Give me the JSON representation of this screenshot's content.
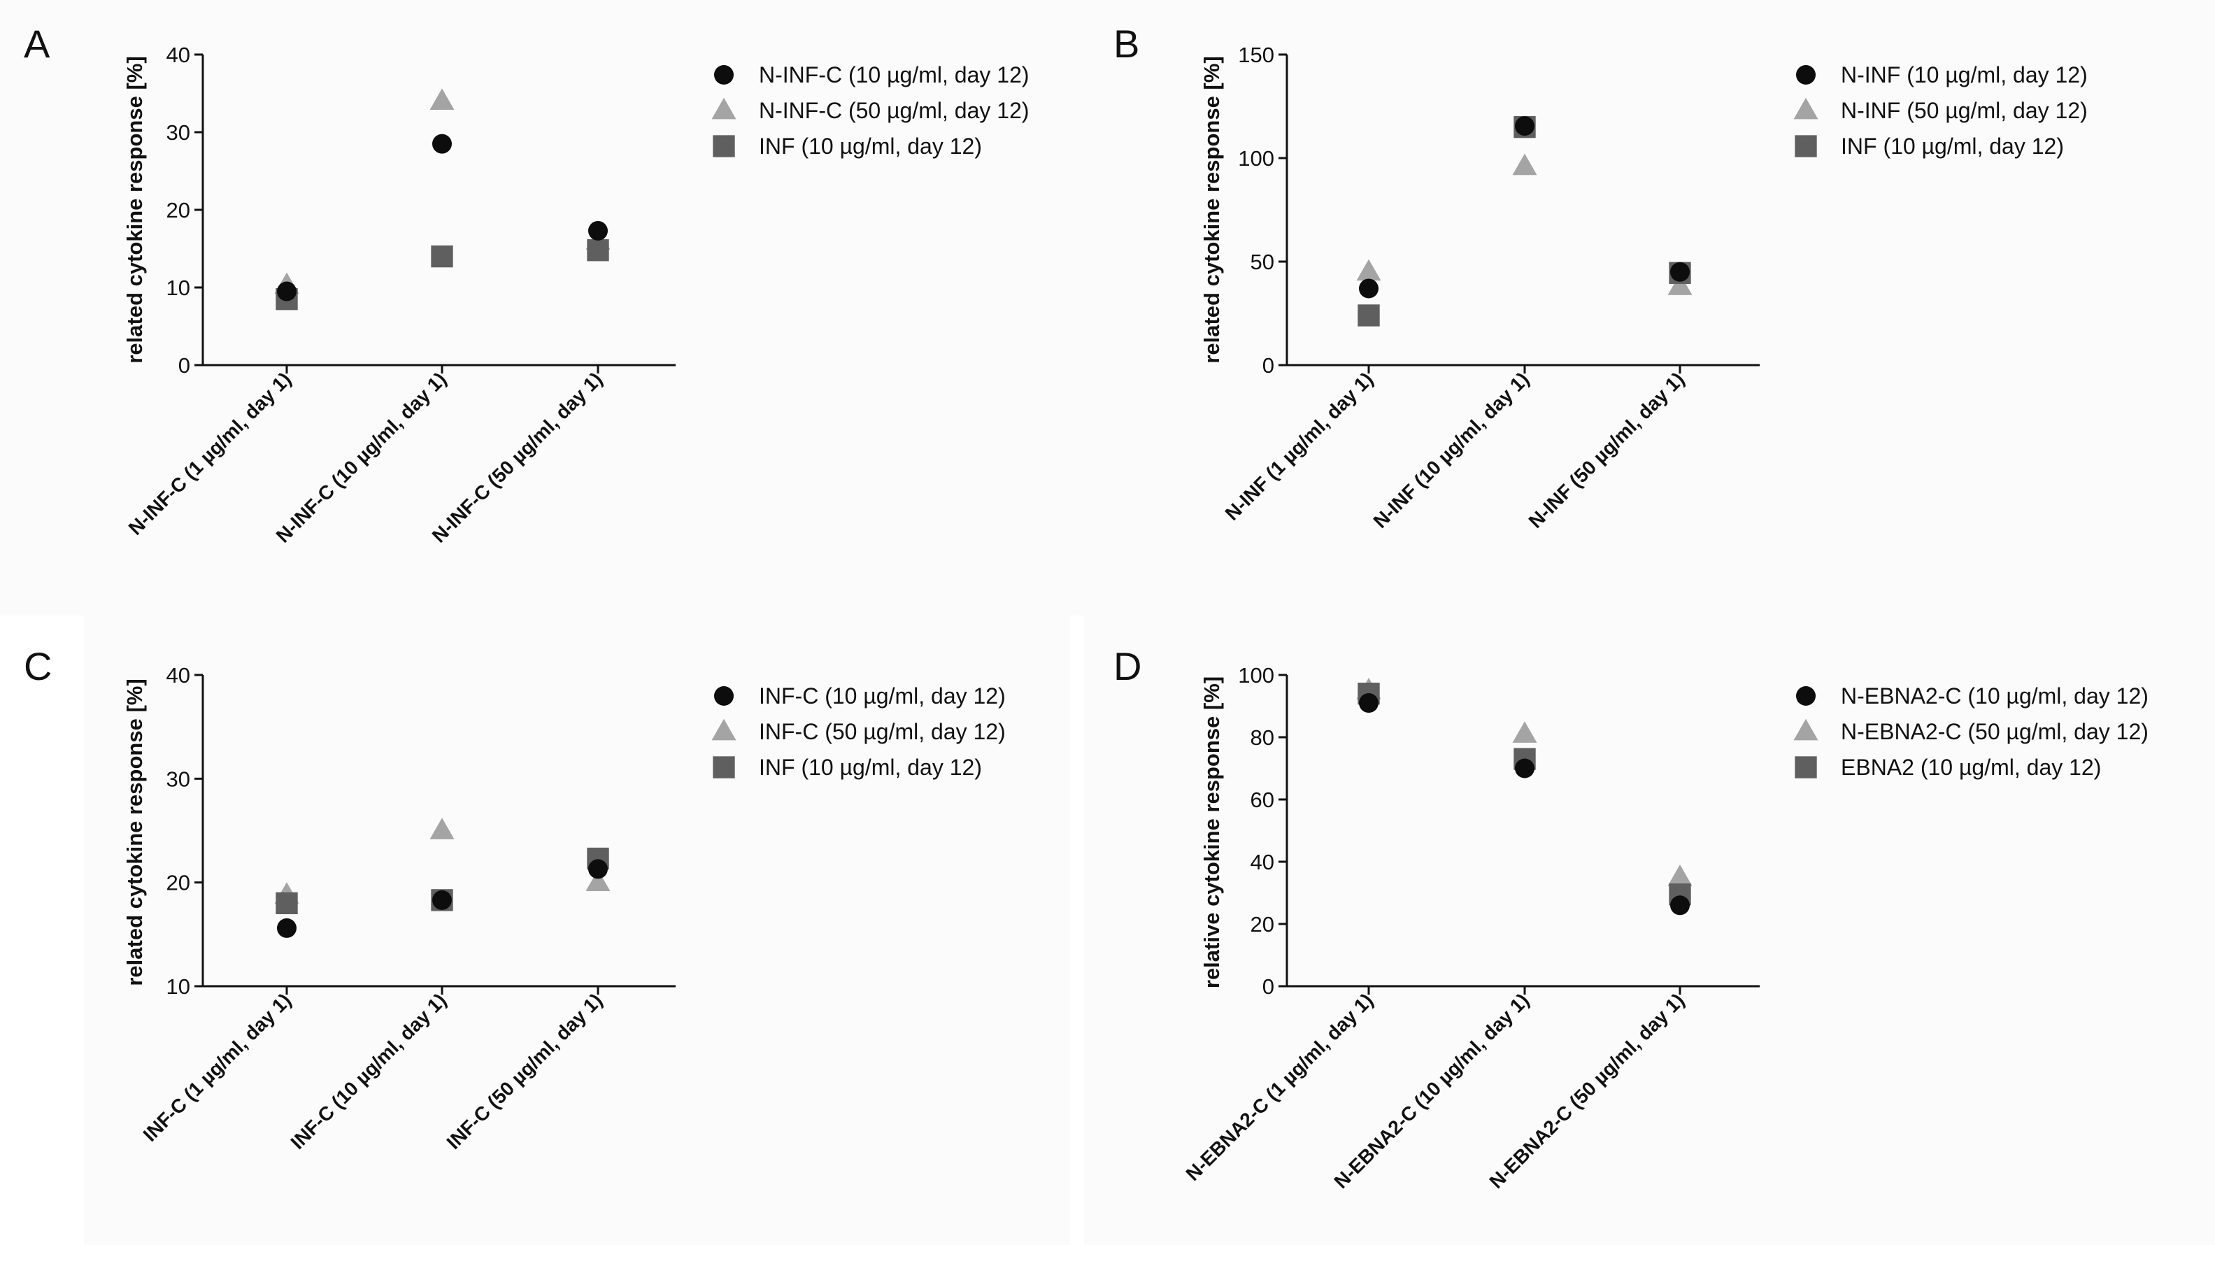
{
  "colors": {
    "circle": "#0d0d0d",
    "triangle": "#a4a4a4",
    "square": "#5f5f5f",
    "axis": "#111111",
    "panel_background": "#fbfbfb"
  },
  "chart_data": [
    {
      "panel": "A",
      "type": "scatter",
      "ylabel": "related cytokine response [%]",
      "ylim": [
        0,
        40
      ],
      "yticks": [
        0,
        10,
        20,
        30,
        40
      ],
      "categories": [
        "N-INF-C (1 µg/ml, day 1)",
        "N-INF-C (10 µg/ml, day 1)",
        "N-INF-C (50 µg/ml, day 1)"
      ],
      "series": [
        {
          "name": "N-INF-C",
          "detail": " (10 µg/ml, day 12)",
          "marker": "circle",
          "values": [
            9.5,
            28.5,
            17.3
          ]
        },
        {
          "name": "N-INF-C",
          "detail": " (50 µg/ml, day 12)",
          "marker": "triangle",
          "values": [
            10.3,
            34,
            16
          ]
        },
        {
          "name": "INF",
          "detail": " (10 µg/ml, day 12)",
          "marker": "square",
          "values": [
            8.5,
            14,
            14.8
          ]
        }
      ]
    },
    {
      "panel": "B",
      "type": "scatter",
      "ylabel": "related cytokine response [%]",
      "ylim": [
        0,
        150
      ],
      "yticks": [
        0,
        50,
        100,
        150
      ],
      "categories": [
        "N-INF (1 µg/ml, day 1)",
        "N-INF (10 µg/ml, day 1)",
        "N-INF (50 µg/ml, day 1)"
      ],
      "series": [
        {
          "name": "N-INF",
          "detail": " (10 µg/ml, day 12)",
          "marker": "circle",
          "values": [
            37,
            115.5,
            45
          ]
        },
        {
          "name": "N-INF",
          "detail": " (50 µg/ml, day 12)",
          "marker": "triangle",
          "values": [
            45,
            96,
            38
          ]
        },
        {
          "name": "INF",
          "detail": " (10 µg/ml, day 12)",
          "marker": "square",
          "values": [
            24,
            115,
            44.5
          ]
        }
      ]
    },
    {
      "panel": "C",
      "type": "scatter",
      "ylabel": "related cytokine response [%]",
      "ylim": [
        10,
        40
      ],
      "yticks": [
        10,
        20,
        30,
        40
      ],
      "categories": [
        "INF-C (1 µg/ml, day 1)",
        "INF-C (10 µg/ml, day 1)",
        "INF-C (50 µg/ml, day 1)"
      ],
      "series": [
        {
          "name": "INF-C",
          "detail": " (10 µg/ml, day 12)",
          "marker": "circle",
          "values": [
            15.6,
            18.3,
            21.3
          ]
        },
        {
          "name": "INF-C",
          "detail": " (50 µg/ml, day 12)",
          "marker": "triangle",
          "values": [
            18.8,
            25,
            20
          ]
        },
        {
          "name": "INF",
          "detail": " (10 µg/ml, day 12)",
          "marker": "square",
          "values": [
            18,
            18.3,
            22.3
          ]
        }
      ]
    },
    {
      "panel": "D",
      "type": "scatter",
      "ylabel": "relative cytokine response [%]",
      "ylim": [
        0,
        100
      ],
      "yticks": [
        0,
        20,
        40,
        60,
        80,
        100
      ],
      "categories": [
        "N-EBNA2-C (1 µg/ml, day 1)",
        "N-EBNA2-C (10 µg/ml, day 1)",
        "N-EBNA2-C  (50 µg/ml, day 1)"
      ],
      "series": [
        {
          "name": "N-EBNA2-C",
          "detail": " (10 µg/ml, day 12)",
          "marker": "circle",
          "values": [
            91,
            70,
            26
          ]
        },
        {
          "name": "N-EBNA2-C",
          "detail": " (50 µg/ml, day 12)",
          "marker": "triangle",
          "values": [
            95,
            81,
            35
          ]
        },
        {
          "name": "EBNA2",
          "detail": " (10 µg/ml, day 12)",
          "marker": "square",
          "values": [
            94,
            73,
            29.5
          ]
        }
      ]
    }
  ]
}
